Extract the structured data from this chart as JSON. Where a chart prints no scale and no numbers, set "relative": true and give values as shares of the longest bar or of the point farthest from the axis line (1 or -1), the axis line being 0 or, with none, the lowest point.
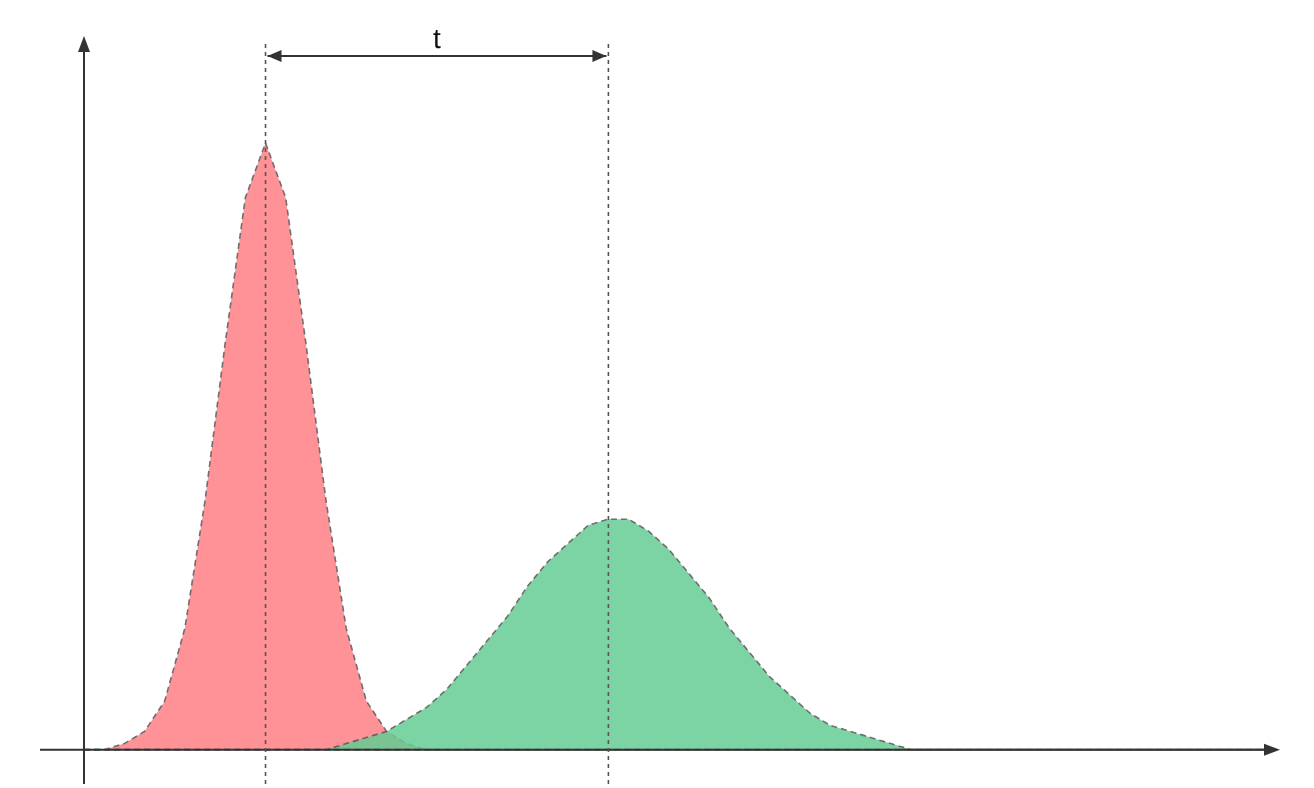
{
  "chart_data": {
    "type": "area",
    "relative": true,
    "tick_labels": false,
    "line_style": "dashed",
    "annotations": [
      "t"
    ],
    "categories": [
      null,
      null,
      null,
      null,
      null,
      null,
      null,
      null,
      null,
      null,
      null,
      null,
      null,
      null,
      null,
      null,
      null,
      null,
      null,
      null,
      null,
      null,
      null,
      null,
      null,
      null,
      null,
      null,
      null,
      null,
      null,
      null,
      null,
      null,
      null,
      null,
      null,
      null,
      null,
      null,
      null,
      null,
      null,
      null,
      null,
      null,
      null,
      null,
      null,
      null,
      null,
      null,
      null,
      null,
      null,
      null,
      null,
      null,
      null,
      null
    ],
    "series": [
      {
        "color": "#ff7f86",
        "values": [
          0,
          0,
          0.01,
          0.03,
          0.08,
          0.2,
          0.41,
          0.67,
          0.91,
          1,
          0.91,
          0.67,
          0.41,
          0.2,
          0.08,
          0.03,
          0.01,
          0,
          0,
          0,
          0,
          0,
          0,
          0,
          0,
          0,
          0,
          0,
          0,
          0,
          0,
          0,
          0,
          0,
          0,
          0,
          0,
          0,
          0,
          0,
          0,
          0,
          0,
          0,
          0,
          0,
          0,
          0,
          0,
          0,
          0,
          0,
          0,
          0,
          0,
          0,
          0,
          0,
          0,
          0
        ]
      },
      {
        "color": "#66cc94",
        "values": [
          0,
          0,
          0,
          0,
          0,
          0,
          0,
          0,
          0,
          0,
          0,
          0,
          0,
          0.01,
          0.02,
          0.03,
          0.05,
          0.07,
          0.1,
          0.14,
          0.18,
          0.22,
          0.27,
          0.31,
          0.34,
          0.37,
          0.38,
          0.38,
          0.36,
          0.33,
          0.29,
          0.25,
          0.2,
          0.16,
          0.12,
          0.09,
          0.06,
          0.04,
          0.03,
          0.02,
          0.01,
          0,
          0,
          0,
          0,
          0,
          0,
          0,
          0,
          0,
          0,
          0,
          0,
          0,
          0,
          0,
          0,
          0,
          0,
          0
        ]
      }
    ]
  }
}
